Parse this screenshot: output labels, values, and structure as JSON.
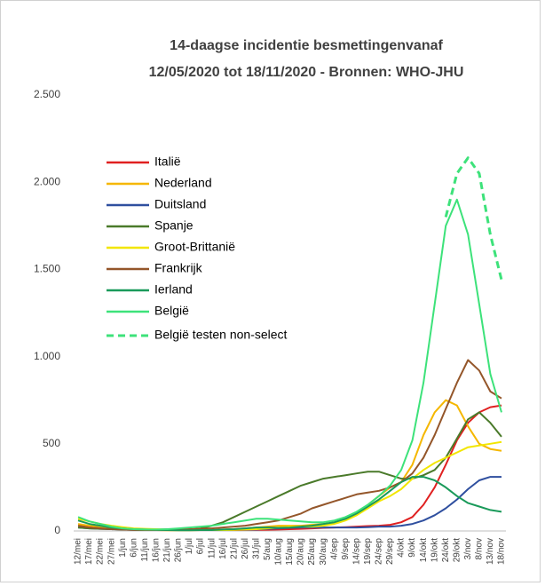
{
  "chart_data": {
    "type": "line",
    "title": [
      "14-daagse incidentie besmettingenvanaf",
      "12/05/2020 tot 18/11/2020 - Bronnen: WHO-JHU"
    ],
    "categories": [
      "12/mei",
      "17/mei",
      "22/mei",
      "27/mei",
      "1/jun",
      "6/jun",
      "11/jun",
      "16/jun",
      "21/jun",
      "26/jun",
      "1/jul",
      "6/jul",
      "11/jul",
      "16/jul",
      "21/jul",
      "26/jul",
      "31/jul",
      "5/aug",
      "10/aug",
      "15/aug",
      "20/aug",
      "25/aug",
      "30/aug",
      "4/sep",
      "9/sep",
      "14/sep",
      "19/sep",
      "24/sep",
      "29/sep",
      "4/okt",
      "9/okt",
      "14/okt",
      "19/okt",
      "24/okt",
      "29/okt",
      "3/nov",
      "8/nov",
      "13/nov",
      "18/nov"
    ],
    "ylim": [
      0,
      2500
    ],
    "yticks": [
      0,
      {
        "value": 500,
        "label": "500"
      },
      {
        "value": 1000,
        "label": "1.000"
      },
      {
        "value": 1500,
        "label": "1.500"
      },
      {
        "value": 2000,
        "label": "2.000"
      },
      {
        "value": 2500,
        "label": "2.500"
      }
    ],
    "grid": false,
    "legend": "upper left",
    "series": [
      {
        "name": "Italië",
        "color": "#e02020",
        "values": [
          30,
          25,
          20,
          15,
          12,
          10,
          8,
          7,
          6,
          5,
          5,
          5,
          5,
          5,
          5,
          6,
          6,
          7,
          8,
          10,
          12,
          15,
          18,
          20,
          22,
          25,
          28,
          30,
          35,
          50,
          80,
          150,
          250,
          380,
          520,
          620,
          680,
          710,
          720
        ]
      },
      {
        "name": "Nederland",
        "color": "#f5b700",
        "values": [
          40,
          30,
          25,
          15,
          10,
          8,
          5,
          5,
          4,
          4,
          4,
          5,
          5,
          8,
          10,
          15,
          20,
          25,
          30,
          30,
          30,
          35,
          40,
          50,
          70,
          100,
          150,
          200,
          250,
          280,
          380,
          550,
          680,
          750,
          720,
          600,
          500,
          470,
          460
        ]
      },
      {
        "name": "Duitsland",
        "color": "#2f4f9f",
        "values": [
          20,
          15,
          12,
          10,
          8,
          6,
          5,
          6,
          10,
          8,
          5,
          5,
          5,
          5,
          6,
          7,
          8,
          12,
          15,
          18,
          20,
          20,
          20,
          20,
          20,
          20,
          22,
          25,
          25,
          30,
          40,
          60,
          90,
          130,
          180,
          240,
          290,
          310,
          310
        ]
      },
      {
        "name": "Spanje",
        "color": "#4a7a2a",
        "values": [
          20,
          15,
          12,
          10,
          8,
          6,
          5,
          5,
          5,
          5,
          8,
          15,
          30,
          50,
          80,
          110,
          140,
          170,
          200,
          230,
          260,
          280,
          300,
          310,
          320,
          330,
          340,
          340,
          320,
          300,
          300,
          320,
          350,
          420,
          530,
          640,
          680,
          620,
          540
        ]
      },
      {
        "name": "Groot-Brittanië",
        "color": "#f2e600",
        "values": [
          70,
          55,
          40,
          30,
          22,
          15,
          12,
          10,
          8,
          7,
          6,
          6,
          5,
          5,
          6,
          8,
          10,
          15,
          20,
          25,
          25,
          25,
          30,
          40,
          60,
          90,
          130,
          170,
          200,
          240,
          300,
          350,
          390,
          420,
          450,
          480,
          490,
          500,
          510
        ]
      },
      {
        "name": "Frankrijk",
        "color": "#94562a",
        "values": [
          30,
          20,
          15,
          10,
          8,
          6,
          5,
          5,
          6,
          8,
          10,
          12,
          15,
          20,
          25,
          30,
          40,
          50,
          60,
          80,
          100,
          130,
          150,
          170,
          190,
          210,
          220,
          230,
          250,
          280,
          330,
          420,
          550,
          700,
          850,
          980,
          920,
          800,
          760
        ]
      },
      {
        "name": "Ierland",
        "color": "#1a9a5a",
        "values": [
          60,
          40,
          30,
          20,
          15,
          10,
          8,
          6,
          5,
          4,
          4,
          5,
          5,
          8,
          10,
          15,
          20,
          20,
          18,
          20,
          25,
          30,
          40,
          50,
          70,
          100,
          140,
          180,
          230,
          280,
          310,
          310,
          290,
          250,
          200,
          160,
          140,
          120,
          110
        ]
      },
      {
        "name": "België",
        "color": "#3de27a",
        "values": [
          80,
          55,
          40,
          25,
          15,
          10,
          8,
          8,
          10,
          15,
          20,
          25,
          30,
          40,
          50,
          60,
          70,
          70,
          65,
          60,
          55,
          50,
          50,
          60,
          80,
          110,
          150,
          200,
          260,
          350,
          520,
          850,
          1300,
          1750,
          1900,
          1700,
          1300,
          900,
          680
        ]
      },
      {
        "name": "België testen non-select",
        "color": "#3de27a",
        "dashed": true,
        "values": [
          null,
          null,
          null,
          null,
          null,
          null,
          null,
          null,
          null,
          null,
          null,
          null,
          null,
          null,
          null,
          null,
          null,
          null,
          null,
          null,
          null,
          null,
          null,
          null,
          null,
          null,
          null,
          null,
          null,
          null,
          null,
          null,
          null,
          1800,
          2050,
          2140,
          2050,
          1700,
          1440
        ]
      }
    ]
  }
}
